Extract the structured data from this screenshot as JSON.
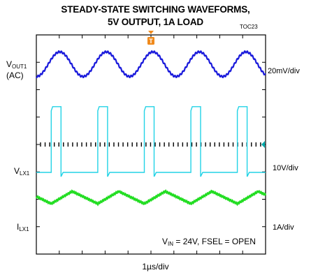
{
  "chart_data": {
    "type": "line",
    "title": "STEADY-STATE SWITCHING WAVEFORMS,",
    "subtitle": "5V OUTPUT, 1A LOAD",
    "figure_id": "TOC23",
    "trigger_marker": "T",
    "xlabel": "1µs/div",
    "grid": true,
    "divisions": {
      "x": 10,
      "y": 8
    },
    "time_per_div_us": 1,
    "switching_period_us": 2.03,
    "series": [
      {
        "name_main": "V",
        "name_sub": "OUT1",
        "name_extra": "(AC)",
        "scale": "20mV/div",
        "color": "#1a1adb",
        "shape": "sine-ripple",
        "ripple_pp_mV": 18
      },
      {
        "name_main": "V",
        "name_sub": "LX1",
        "scale": "10V/div",
        "color": "#22d3e6",
        "shape": "pulse",
        "high_V": 24,
        "duty_fraction": 0.21
      },
      {
        "name_main": "I",
        "name_sub": "LX1",
        "scale": "1A/div",
        "color": "#22dd22",
        "shape": "triangle",
        "ripple_pp_A": 0.45
      }
    ],
    "annotation": {
      "vin_main": "V",
      "vin_sub": "IN",
      "text": " = 24V, FSEL = OPEN"
    }
  }
}
